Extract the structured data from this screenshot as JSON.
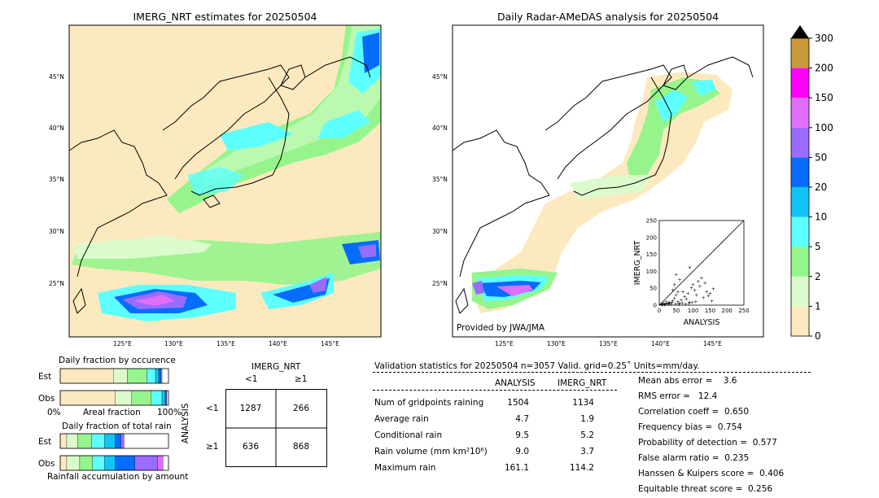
{
  "maps": {
    "left_title": "IMERG_NRT estimates for 20250504",
    "right_title": "Daily Radar-AMeDAS analysis for 20250504",
    "lat_labels": [
      "45°N",
      "40°N",
      "35°N",
      "30°N",
      "25°N"
    ],
    "lon_labels": [
      "125°E",
      "130°E",
      "135°E",
      "140°E",
      "145°E"
    ],
    "provider": "Provided by JWA/JMA"
  },
  "colorbar": {
    "levels": [
      "0",
      "1",
      "2",
      "5",
      "10",
      "20",
      "50",
      "100",
      "150",
      "200",
      "300"
    ],
    "colors": [
      "#fde9bf",
      "#dcfbcd",
      "#95f58c",
      "#5effff",
      "#11c4f5",
      "#066cfb",
      "#9a6cfc",
      "#e06efc",
      "#ff00ff",
      "#c99a3c"
    ]
  },
  "occurrence": {
    "title": "Daily fraction by occurence",
    "row_labels": [
      "Est",
      "Obs"
    ],
    "axis_left": "0%",
    "axis_mid": "Areal fraction",
    "axis_right": "100%",
    "est": [
      0.49,
      0.13,
      0.18,
      0.08,
      0.03,
      0.02,
      0.01
    ],
    "obs": [
      0.51,
      0.15,
      0.18,
      0.1,
      0.03,
      0.01,
      0.005
    ]
  },
  "accumulation": {
    "title": "Daily fraction of total rain",
    "row_labels": [
      "Est",
      "Obs"
    ],
    "axis_label": "Rainfall accumulation by amount",
    "est": [
      0.06,
      0.1,
      0.13,
      0.12,
      0.1,
      0.05,
      0.03
    ],
    "obs": [
      0.06,
      0.12,
      0.12,
      0.11,
      0.1,
      0.18,
      0.21,
      0.05
    ]
  },
  "contingency": {
    "col_title": "IMERG_NRT",
    "col_labels": [
      "<1",
      "≥1"
    ],
    "row_title": "ANALYSIS",
    "row_labels": [
      "<1",
      "≥1"
    ],
    "cells": [
      "1287",
      "266",
      "636",
      "868"
    ]
  },
  "stats": {
    "header": "Validation statistics for 20250504  n=3057 Valid. grid=0.25˚ Units=mm/day.",
    "col1": "ANALYSIS",
    "col2": "IMERG_NRT",
    "rows": [
      {
        "label": "Num of gridpoints raining",
        "a": "1504",
        "b": "1134"
      },
      {
        "label": "Average rain",
        "a": "4.7",
        "b": "1.9"
      },
      {
        "label": "Conditional rain",
        "a": "9.5",
        "b": "5.2"
      },
      {
        "label": "Rain volume (mm km²10⁶)",
        "a": "9.0",
        "b": "3.7"
      },
      {
        "label": "Maximum rain",
        "a": "161.1",
        "b": "114.2"
      }
    ],
    "scores": [
      "Mean abs error =    3.6",
      "RMS error =   12.4",
      "Correlation coeff =  0.650",
      "Frequency bias =  0.754",
      "Probability of detection =  0.577",
      "False alarm ratio =  0.235",
      "Hanssen & Kuipers score =  0.406",
      "Equitable threat score =  0.256"
    ]
  },
  "chart_data": {
    "type": "scatter",
    "xlabel": "ANALYSIS",
    "ylabel": "IMERG_NRT",
    "xlim": [
      0,
      250
    ],
    "ylim": [
      0,
      250
    ],
    "ticks": [
      0,
      50,
      100,
      150,
      200,
      250
    ],
    "points": [
      [
        5,
        2
      ],
      [
        10,
        3
      ],
      [
        15,
        1
      ],
      [
        20,
        4
      ],
      [
        25,
        6
      ],
      [
        30,
        8
      ],
      [
        35,
        3
      ],
      [
        40,
        12
      ],
      [
        45,
        20
      ],
      [
        50,
        30
      ],
      [
        55,
        10
      ],
      [
        60,
        5
      ],
      [
        65,
        15
      ],
      [
        70,
        40
      ],
      [
        75,
        25
      ],
      [
        80,
        18
      ],
      [
        85,
        35
      ],
      [
        90,
        9
      ],
      [
        95,
        50
      ],
      [
        100,
        60
      ],
      [
        105,
        45
      ],
      [
        110,
        30
      ],
      [
        115,
        70
      ],
      [
        120,
        55
      ],
      [
        125,
        80
      ],
      [
        130,
        22
      ],
      [
        135,
        65
      ],
      [
        140,
        40
      ],
      [
        145,
        28
      ],
      [
        150,
        35
      ],
      [
        155,
        12
      ],
      [
        160,
        48
      ],
      [
        45,
        60
      ],
      [
        60,
        75
      ],
      [
        90,
        110
      ],
      [
        50,
        90
      ],
      [
        30,
        5
      ],
      [
        20,
        10
      ],
      [
        12,
        6
      ],
      [
        8,
        1
      ],
      [
        18,
        2
      ],
      [
        28,
        3
      ],
      [
        38,
        7
      ],
      [
        48,
        4
      ],
      [
        58,
        2
      ],
      [
        68,
        6
      ],
      [
        78,
        3
      ],
      [
        88,
        5
      ],
      [
        98,
        8
      ],
      [
        108,
        10
      ],
      [
        40,
        45
      ],
      [
        55,
        38
      ]
    ]
  }
}
